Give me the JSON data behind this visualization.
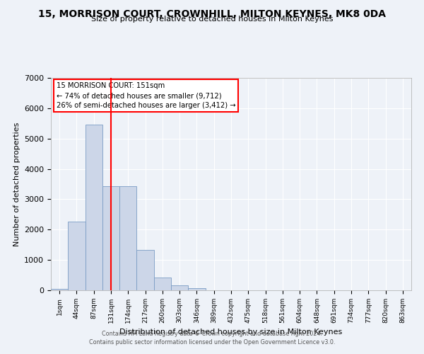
{
  "title": "15, MORRISON COURT, CROWNHILL, MILTON KEYNES, MK8 0DA",
  "subtitle": "Size of property relative to detached houses in Milton Keynes",
  "xlabel": "Distribution of detached houses by size in Milton Keynes",
  "ylabel": "Number of detached properties",
  "tick_labels": [
    "1sqm",
    "44sqm",
    "87sqm",
    "131sqm",
    "174sqm",
    "217sqm",
    "260sqm",
    "303sqm",
    "346sqm",
    "389sqm",
    "432sqm",
    "475sqm",
    "518sqm",
    "561sqm",
    "604sqm",
    "648sqm",
    "691sqm",
    "734sqm",
    "777sqm",
    "820sqm",
    "863sqm"
  ],
  "bar_values": [
    50,
    2270,
    5450,
    3420,
    3420,
    1330,
    430,
    170,
    60,
    0,
    0,
    0,
    0,
    0,
    0,
    0,
    0,
    0,
    0,
    0,
    0
  ],
  "bar_color": "#ccd6e8",
  "bar_edge_color": "#7a9cc4",
  "vline_x": 3.0,
  "vline_color": "red",
  "ylim": [
    0,
    7000
  ],
  "yticks": [
    0,
    1000,
    2000,
    3000,
    4000,
    5000,
    6000,
    7000
  ],
  "annotation_title": "15 MORRISON COURT: 151sqm",
  "annotation_line1": "← 74% of detached houses are smaller (9,712)",
  "annotation_line2": "26% of semi-detached houses are larger (3,412) →",
  "annotation_box_color": "#ffffff",
  "annotation_box_edge": "red",
  "footer_line1": "Contains HM Land Registry data © Crown copyright and database right 2024.",
  "footer_line2": "Contains public sector information licensed under the Open Government Licence v3.0.",
  "background_color": "#eef2f8",
  "grid_color": "#ffffff",
  "plot_bg_color": "#eef2f8"
}
